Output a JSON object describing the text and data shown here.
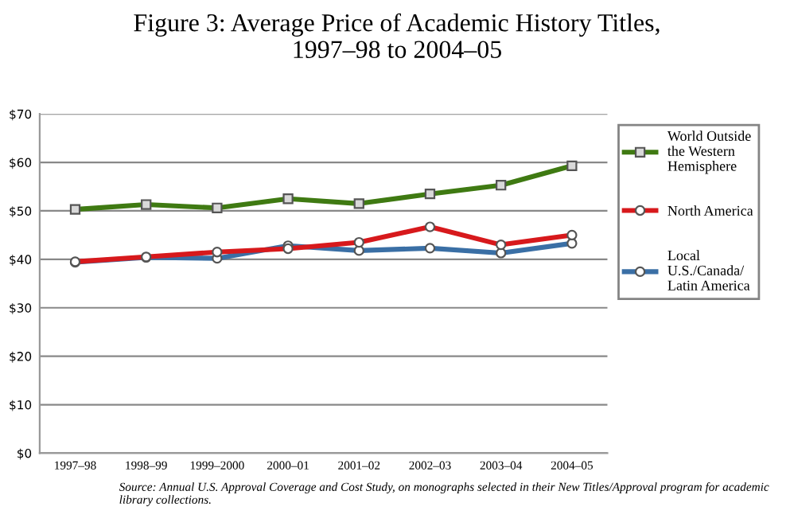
{
  "chart_data": {
    "type": "line",
    "title": "Figure 3: Average Price of Academic History Titles,\n1997–98 to 2004–05",
    "categories": [
      "1997–98",
      "1998–99",
      "1999–2000",
      "2000–01",
      "2001–02",
      "2002–03",
      "2003–04",
      "2004–05"
    ],
    "series": [
      {
        "name": "World Outside\nthe Western\nHemisphere",
        "color": "#3f7a12",
        "marker": "square",
        "values": [
          50.3,
          51.3,
          50.6,
          52.5,
          51.5,
          53.5,
          55.3,
          59.3
        ]
      },
      {
        "name": "North America",
        "color": "#d7191c",
        "marker": "circle",
        "values": [
          39.5,
          40.5,
          41.5,
          42.2,
          43.5,
          46.7,
          43.0,
          45.0
        ]
      },
      {
        "name": "Local\nU.S./Canada/\nLatin America",
        "color": "#3a6fa5",
        "marker": "circle",
        "values": [
          39.4,
          40.4,
          40.2,
          42.8,
          41.8,
          42.3,
          41.3,
          43.3
        ]
      }
    ],
    "ylim": [
      0,
      70
    ],
    "yticks": [
      {
        "value": 0,
        "label": "$0"
      },
      {
        "value": 10,
        "label": "$10"
      },
      {
        "value": 20,
        "label": "$20"
      },
      {
        "value": 30,
        "label": "$30"
      },
      {
        "value": 40,
        "label": "$40"
      },
      {
        "value": 50,
        "label": "$50"
      },
      {
        "value": 60,
        "label": "$60"
      },
      {
        "value": 70,
        "label": "$70"
      }
    ],
    "grid": "y",
    "legend": "right",
    "line_style": "solid",
    "annotations": [
      "Source: Annual U.S. Approval Coverage and Cost Study, on monographs selected in their New Titles/Approval program for academic library collections."
    ]
  }
}
